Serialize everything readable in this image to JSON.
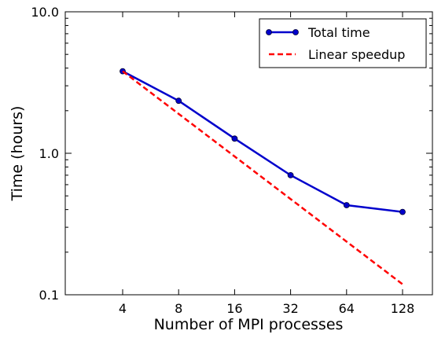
{
  "chart_data": {
    "type": "line",
    "title": "",
    "xlabel": "Number of MPI processes",
    "ylabel": "Time (hours)",
    "x_scale": "log2",
    "y_scale": "log10",
    "x": [
      4,
      8,
      16,
      32,
      64,
      128
    ],
    "x_tick_labels": [
      "4",
      "8",
      "16",
      "32",
      "64",
      "128"
    ],
    "y_tick_labels": [
      "0.1",
      "1.0",
      "10.0"
    ],
    "y_ticks": [
      0.1,
      1.0,
      10.0
    ],
    "ylim": [
      0.1,
      10.0
    ],
    "grid": false,
    "legend_position": "top-right",
    "series": [
      {
        "name": "Total time",
        "values": [
          3.8,
          2.35,
          1.27,
          0.7,
          0.43,
          0.385
        ],
        "color": "#0000cc",
        "style": "solid",
        "marker": "circle"
      },
      {
        "name": "Linear speedup",
        "values": [
          3.8,
          1.9,
          0.95,
          0.475,
          0.2375,
          0.11875
        ],
        "color": "#ff0000",
        "style": "dashed",
        "marker": "none"
      }
    ]
  }
}
